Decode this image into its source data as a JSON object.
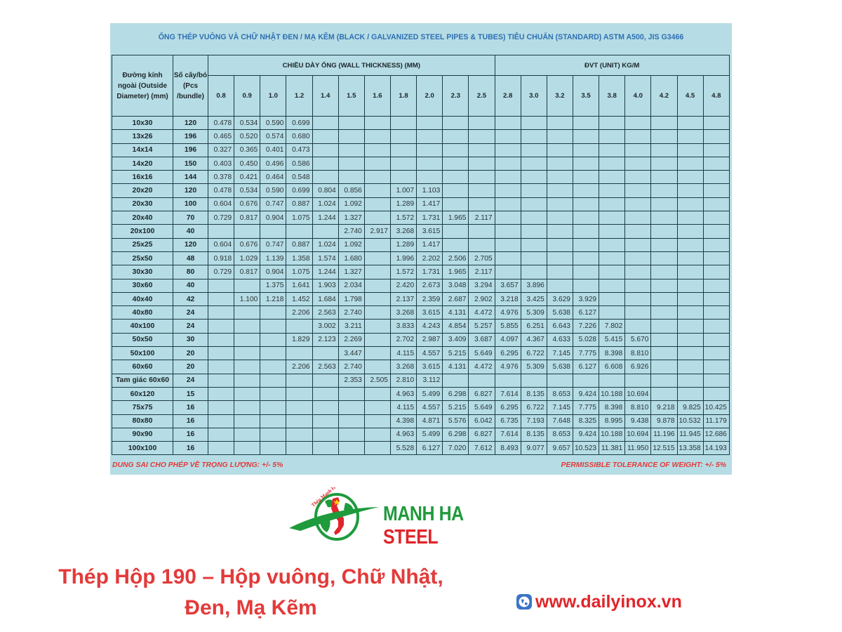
{
  "title": "ỐNG THÉP VUÔNG VÀ CHỮ NHẬT ĐEN / MẠ KẼM (BLACK / GALVANIZED STEEL PIPES & TUBES) TIÊU CHUẨN (STANDARD) ASTM A500, JIS G3466",
  "table": {
    "header": {
      "outside_diameter": "Đường kính ngoài (Outside Diameter) (mm)",
      "pcs_bundle": "Số cây/bó (Pcs /bundle)",
      "wall_thickness": "CHIỀU DÀY ỐNG (WALL THICKNESS) (MM)",
      "unit": "ĐVT (UNIT) KG/M"
    },
    "thicknesses": [
      "0.8",
      "0.9",
      "1.0",
      "1.2",
      "1.4",
      "1.5",
      "1.6",
      "1.8",
      "2.0",
      "2.3",
      "2.5",
      "2.8",
      "3.0",
      "3.2",
      "3.5",
      "3.8",
      "4.0",
      "4.2",
      "4.5",
      "4.8"
    ],
    "rows": [
      {
        "size": "10x30",
        "pcs": "120",
        "values": [
          "0.478",
          "0.534",
          "0.590",
          "0.699",
          "",
          "",
          "",
          "",
          "",
          "",
          "",
          "",
          "",
          "",
          "",
          "",
          "",
          "",
          "",
          ""
        ]
      },
      {
        "size": "13x26",
        "pcs": "196",
        "values": [
          "0.465",
          "0.520",
          "0.574",
          "0.680",
          "",
          "",
          "",
          "",
          "",
          "",
          "",
          "",
          "",
          "",
          "",
          "",
          "",
          "",
          "",
          ""
        ]
      },
      {
        "size": "14x14",
        "pcs": "196",
        "values": [
          "0.327",
          "0.365",
          "0.401",
          "0.473",
          "",
          "",
          "",
          "",
          "",
          "",
          "",
          "",
          "",
          "",
          "",
          "",
          "",
          "",
          "",
          ""
        ]
      },
      {
        "size": "14x20",
        "pcs": "150",
        "values": [
          "0.403",
          "0.450",
          "0.496",
          "0.586",
          "",
          "",
          "",
          "",
          "",
          "",
          "",
          "",
          "",
          "",
          "",
          "",
          "",
          "",
          "",
          ""
        ]
      },
      {
        "size": "16x16",
        "pcs": "144",
        "values": [
          "0.378",
          "0.421",
          "0.464",
          "0.548",
          "",
          "",
          "",
          "",
          "",
          "",
          "",
          "",
          "",
          "",
          "",
          "",
          "",
          "",
          "",
          ""
        ]
      },
      {
        "size": "20x20",
        "pcs": "120",
        "values": [
          "0.478",
          "0.534",
          "0.590",
          "0.699",
          "0.804",
          "0.856",
          "",
          "1.007",
          "1.103",
          "",
          "",
          "",
          "",
          "",
          "",
          "",
          "",
          "",
          "",
          ""
        ]
      },
      {
        "size": "20x30",
        "pcs": "100",
        "values": [
          "0.604",
          "0.676",
          "0.747",
          "0.887",
          "1.024",
          "1.092",
          "",
          "1.289",
          "1.417",
          "",
          "",
          "",
          "",
          "",
          "",
          "",
          "",
          "",
          "",
          ""
        ]
      },
      {
        "size": "20x40",
        "pcs": "70",
        "values": [
          "0.729",
          "0.817",
          "0.904",
          "1.075",
          "1.244",
          "1.327",
          "",
          "1.572",
          "1.731",
          "1.965",
          "2.117",
          "",
          "",
          "",
          "",
          "",
          "",
          "",
          "",
          ""
        ]
      },
      {
        "size": "20x100",
        "pcs": "40",
        "values": [
          "",
          "",
          "",
          "",
          "",
          "2.740",
          "2.917",
          "3.268",
          "3.615",
          "",
          "",
          "",
          "",
          "",
          "",
          "",
          "",
          "",
          "",
          ""
        ]
      },
      {
        "size": "25x25",
        "pcs": "120",
        "values": [
          "0.604",
          "0.676",
          "0.747",
          "0.887",
          "1.024",
          "1.092",
          "",
          "1.289",
          "1.417",
          "",
          "",
          "",
          "",
          "",
          "",
          "",
          "",
          "",
          "",
          ""
        ]
      },
      {
        "size": "25x50",
        "pcs": "48",
        "values": [
          "0.918",
          "1.029",
          "1.139",
          "1.358",
          "1.574",
          "1.680",
          "",
          "1.996",
          "2.202",
          "2.506",
          "2.705",
          "",
          "",
          "",
          "",
          "",
          "",
          "",
          "",
          ""
        ]
      },
      {
        "size": "30x30",
        "pcs": "80",
        "values": [
          "0.729",
          "0.817",
          "0.904",
          "1.075",
          "1.244",
          "1.327",
          "",
          "1.572",
          "1.731",
          "1.965",
          "2.117",
          "",
          "",
          "",
          "",
          "",
          "",
          "",
          "",
          ""
        ]
      },
      {
        "size": "30x60",
        "pcs": "40",
        "values": [
          "",
          "",
          "1.375",
          "1.641",
          "1.903",
          "2.034",
          "",
          "2.420",
          "2.673",
          "3.048",
          "3.294",
          "3.657",
          "3.896",
          "",
          "",
          "",
          "",
          "",
          "",
          ""
        ]
      },
      {
        "size": "40x40",
        "pcs": "42",
        "values": [
          "",
          "1.100",
          "1.218",
          "1.452",
          "1.684",
          "1.798",
          "",
          "2.137",
          "2.359",
          "2.687",
          "2.902",
          "3.218",
          "3.425",
          "3.629",
          "3.929",
          "",
          "",
          "",
          "",
          ""
        ]
      },
      {
        "size": "40x80",
        "pcs": "24",
        "values": [
          "",
          "",
          "",
          "2.206",
          "2.563",
          "2.740",
          "",
          "3.268",
          "3.615",
          "4.131",
          "4.472",
          "4.976",
          "5.309",
          "5.638",
          "6.127",
          "",
          "",
          "",
          "",
          ""
        ]
      },
      {
        "size": "40x100",
        "pcs": "24",
        "values": [
          "",
          "",
          "",
          "",
          "3.002",
          "3.211",
          "",
          "3.833",
          "4.243",
          "4.854",
          "5.257",
          "5.855",
          "6.251",
          "6.643",
          "7.226",
          "7.802",
          "",
          "",
          "",
          ""
        ]
      },
      {
        "size": "50x50",
        "pcs": "30",
        "values": [
          "",
          "",
          "",
          "1.829",
          "2.123",
          "2.269",
          "",
          "2.702",
          "2.987",
          "3.409",
          "3.687",
          "4.097",
          "4.367",
          "4.633",
          "5.028",
          "5.415",
          "5.670",
          "",
          "",
          ""
        ]
      },
      {
        "size": "50x100",
        "pcs": "20",
        "values": [
          "",
          "",
          "",
          "",
          "",
          "3.447",
          "",
          "4.115",
          "4.557",
          "5.215",
          "5.649",
          "6.295",
          "6.722",
          "7.145",
          "7.775",
          "8.398",
          "8.810",
          "",
          "",
          ""
        ]
      },
      {
        "size": "60x60",
        "pcs": "20",
        "values": [
          "",
          "",
          "",
          "2.206",
          "2.563",
          "2.740",
          "",
          "3.268",
          "3.615",
          "4.131",
          "4.472",
          "4.976",
          "5.309",
          "5.638",
          "6.127",
          "6.608",
          "6.926",
          "",
          "",
          ""
        ]
      },
      {
        "size": "Tam giác 60x60",
        "pcs": "24",
        "values": [
          "",
          "",
          "",
          "",
          "",
          "2.353",
          "2.505",
          "2.810",
          "3.112",
          "",
          "",
          "",
          "",
          "",
          "",
          "",
          "",
          "",
          "",
          ""
        ]
      },
      {
        "size": "60x120",
        "pcs": "15",
        "values": [
          "",
          "",
          "",
          "",
          "",
          "",
          "",
          "4.963",
          "5.499",
          "6.298",
          "6.827",
          "7.614",
          "8.135",
          "8.653",
          "9.424",
          "10.188",
          "10.694",
          "",
          "",
          ""
        ]
      },
      {
        "size": "75x75",
        "pcs": "16",
        "values": [
          "",
          "",
          "",
          "",
          "",
          "",
          "",
          "4.115",
          "4.557",
          "5.215",
          "5.649",
          "6.295",
          "6.722",
          "7.145",
          "7.775",
          "8.398",
          "8.810",
          "9.218",
          "9.825",
          "10.425"
        ]
      },
      {
        "size": "80x80",
        "pcs": "16",
        "values": [
          "",
          "",
          "",
          "",
          "",
          "",
          "",
          "4.398",
          "4.871",
          "5.576",
          "6.042",
          "6.735",
          "7.193",
          "7.648",
          "8.325",
          "8.995",
          "9.438",
          "9.878",
          "10.532",
          "11.179"
        ]
      },
      {
        "size": "90x90",
        "pcs": "16",
        "values": [
          "",
          "",
          "",
          "",
          "",
          "",
          "",
          "4.963",
          "5.499",
          "6.298",
          "6.827",
          "7.614",
          "8.135",
          "8.653",
          "9.424",
          "10.188",
          "10.694",
          "11.196",
          "11.945",
          "12.686"
        ]
      },
      {
        "size": "100x100",
        "pcs": "16",
        "values": [
          "",
          "",
          "",
          "",
          "",
          "",
          "",
          "5.528",
          "6.127",
          "7.020",
          "7.612",
          "8.493",
          "9.077",
          "9.657",
          "10.523",
          "11.381",
          "11.950",
          "12.515",
          "13.358",
          "14.193"
        ]
      }
    ]
  },
  "tolerance_vi": "DUNG SAI CHO PHÉP VỀ TRỌNG LƯỢNG: +/- 5%",
  "tolerance_en": "PERMISSIBLE TOLERANCE OF WEIGHT: +/- 5%",
  "logo": {
    "arc_text": "Thép Mạnh Hà",
    "brand_green": "MANH HA",
    "brand_red": "STEEL",
    "icon": "globe-vietnam-map-icon"
  },
  "caption_line1": "Thép Hộp 190 – Hộp vuông, Chữ Nhật,",
  "caption_line2": "Đen, Mạ Kẽm",
  "website": {
    "icon": "globe-icon",
    "text": "www.dailyinox.vn"
  },
  "colors": {
    "panel_bg": "#b6dde5",
    "title_blue": "#2f6fb3",
    "grid_line": "#1c3a44",
    "accent_red": "#e33a3a",
    "brand_green": "#1f9a3c"
  }
}
